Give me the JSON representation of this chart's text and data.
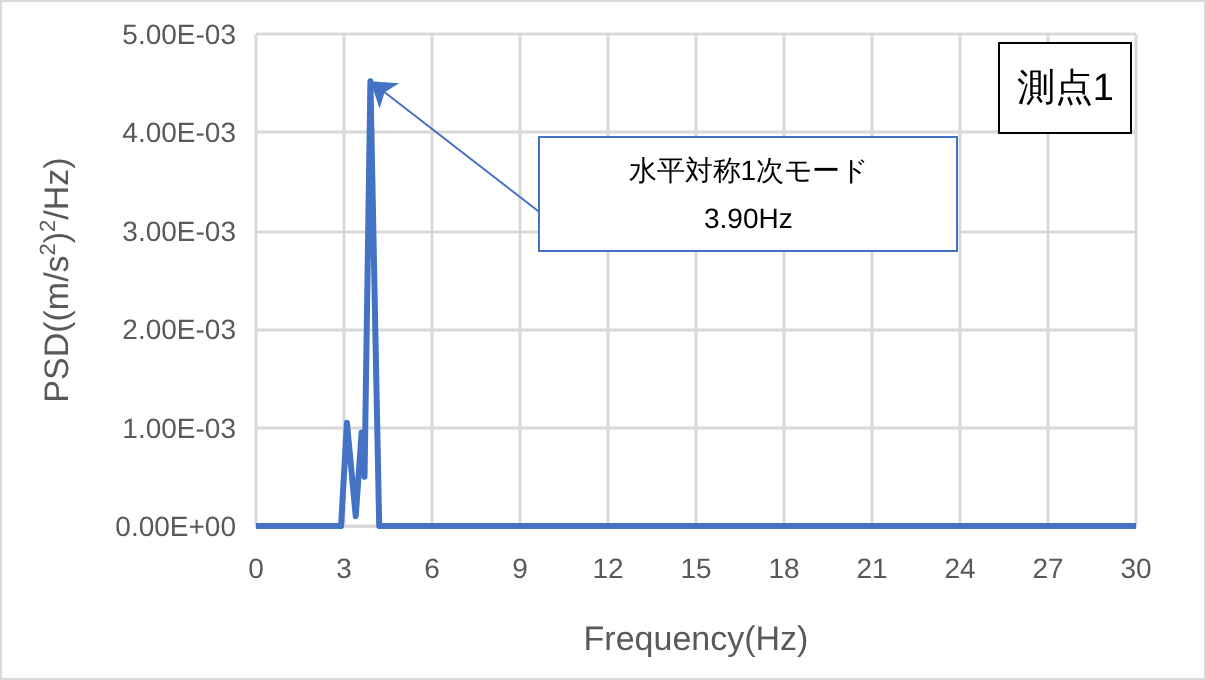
{
  "chart_data": {
    "type": "line",
    "xlabel": "Frequency(Hz)",
    "ylabel": "PSD((m/s$^{2}$)$^{2}$/Hz)",
    "x": [
      0,
      2.9,
      3.1,
      3.4,
      3.6,
      3.7,
      3.9,
      4.2,
      30
    ],
    "series": [
      {
        "color": "#4472c4",
        "values": [
          0,
          0,
          0.00105,
          0.0001,
          0.00095,
          0.0005,
          0.00452,
          0,
          0
        ]
      }
    ],
    "xlim": [
      0,
      30
    ],
    "xticks": [
      0,
      3,
      6,
      9,
      12,
      15,
      18,
      21,
      24,
      27,
      30
    ],
    "ylim": [
      0,
      0.005
    ],
    "yticks": [
      {
        "value": 0,
        "label": "0.00E+00"
      },
      {
        "value": 0.001,
        "label": "1.00E-03"
      },
      {
        "value": 0.002,
        "label": "2.00E-03"
      },
      {
        "value": 0.003,
        "label": "3.00E-03"
      },
      {
        "value": 0.004,
        "label": "4.00E-03"
      },
      {
        "value": 0.005,
        "label": "5.00E-03"
      }
    ],
    "grid": true,
    "marker": "none",
    "line_style": "solid",
    "annotations": [
      "水平対称1次モード\n3.90Hz",
      "測点1"
    ]
  }
}
